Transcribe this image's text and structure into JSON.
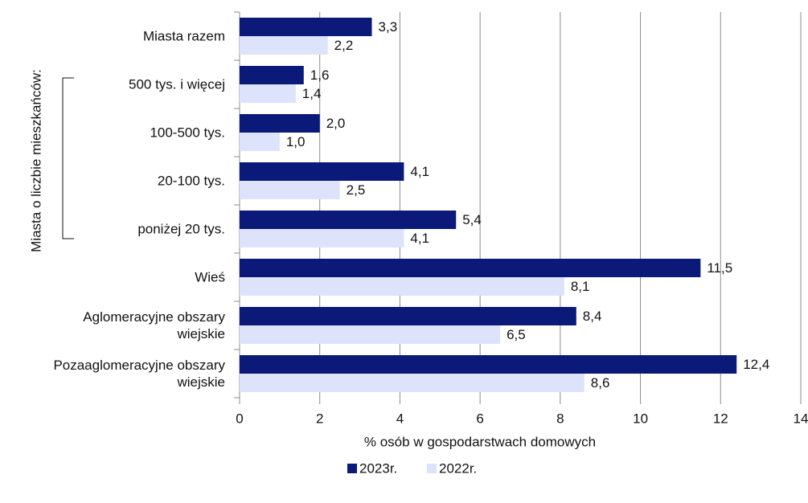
{
  "chart_data": {
    "type": "barh",
    "categories": [
      "Miasta razem",
      "500 tys. i więcej",
      "100-500 tys.",
      "20-100 tys.",
      "poniżej 20 tys.",
      "Wieś",
      "Aglomeracyjne obszary wiejskie",
      "Pozaaglomeracyjne obszary wiejskie"
    ],
    "group_label": "Miasta o liczbie mieszkańców:",
    "xlabel": "% osób w gospodarstwach domowych",
    "series": [
      {
        "name": "2023r.",
        "color": "#0b1a78",
        "values": [
          3.3,
          1.6,
          2.0,
          4.1,
          5.4,
          11.5,
          8.4,
          12.4
        ],
        "value_labels": [
          "3,3",
          "1,6",
          "2,0",
          "4,1",
          "5,4",
          "11,5",
          "8,4",
          "12,4"
        ]
      },
      {
        "name": "2022r.",
        "color": "#dde3fb",
        "values": [
          2.2,
          1.4,
          1.0,
          2.5,
          4.1,
          8.1,
          6.5,
          8.6
        ],
        "value_labels": [
          "2,2",
          "1,4",
          "1,0",
          "2,5",
          "4,1",
          "8,1",
          "6,5",
          "8,6"
        ]
      }
    ],
    "xlim": [
      0,
      14
    ],
    "xticks": [
      0,
      2,
      4,
      6,
      8,
      10,
      12,
      14
    ],
    "grid": true,
    "legend": "bottom"
  }
}
